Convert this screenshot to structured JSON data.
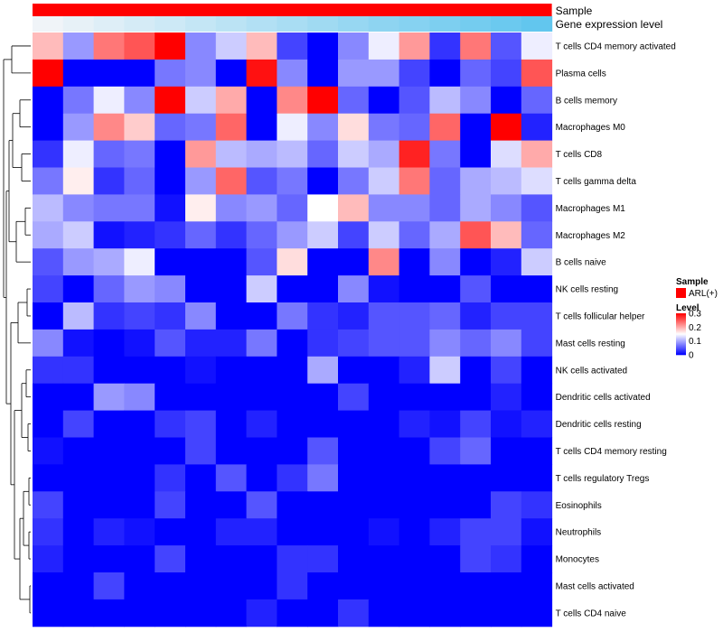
{
  "chart_data": {
    "type": "heatmap",
    "annotation_tracks": {
      "sample": {
        "label": "Sample",
        "color": "#ff0000"
      },
      "expression": {
        "label": "Gene expression level",
        "colors": [
          "#f0f4f8",
          "#62c6ee"
        ]
      }
    },
    "rows": [
      "T cells CD4 memory activated",
      "Plasma cells",
      "B cells memory",
      "Macrophages M0",
      "T cells CD8",
      "T cells gamma delta",
      "Macrophages M1",
      "Macrophages M2",
      "B cells naive",
      "NK cells resting",
      "T cells follicular helper",
      "Mast cells resting",
      "NK cells activated",
      "Dendritic cells activated",
      "Dendritic cells resting",
      "T cells CD4 memory resting",
      "T cells regulatory  Tregs",
      "Eosinophils",
      "Neutrophils",
      "Monocytes",
      "Mast cells activated",
      "T cells CD4 naive"
    ],
    "n_columns": 17,
    "values": [
      [
        0.19,
        0.09,
        0.23,
        0.25,
        0.3,
        0.08,
        0.12,
        0.19,
        0.04,
        0.0,
        0.08,
        0.14,
        0.21,
        0.03,
        0.23,
        0.05,
        0.14
      ],
      [
        0.3,
        0.0,
        0.0,
        0.0,
        0.07,
        0.08,
        0.0,
        0.29,
        0.08,
        0.0,
        0.09,
        0.09,
        0.04,
        0.0,
        0.06,
        0.04,
        0.25
      ],
      [
        0.0,
        0.07,
        0.14,
        0.08,
        0.3,
        0.12,
        0.2,
        0.0,
        0.22,
        0.3,
        0.06,
        0.0,
        0.05,
        0.11,
        0.08,
        0.0,
        0.06
      ],
      [
        0.0,
        0.09,
        0.22,
        0.18,
        0.06,
        0.07,
        0.24,
        0.0,
        0.14,
        0.08,
        0.17,
        0.07,
        0.06,
        0.24,
        0.0,
        0.3,
        0.02
      ],
      [
        0.03,
        0.14,
        0.06,
        0.07,
        0.0,
        0.21,
        0.11,
        0.1,
        0.11,
        0.06,
        0.12,
        0.1,
        0.28,
        0.07,
        0.0,
        0.13,
        0.2
      ],
      [
        0.07,
        0.16,
        0.03,
        0.06,
        0.0,
        0.09,
        0.24,
        0.05,
        0.07,
        0.0,
        0.07,
        0.12,
        0.23,
        0.06,
        0.1,
        0.11,
        0.13
      ],
      [
        0.11,
        0.08,
        0.07,
        0.07,
        0.01,
        0.16,
        0.08,
        0.09,
        0.06,
        0.15,
        0.19,
        0.08,
        0.08,
        0.06,
        0.1,
        0.08,
        0.05
      ],
      [
        0.1,
        0.12,
        0.01,
        0.02,
        0.03,
        0.06,
        0.03,
        0.06,
        0.09,
        0.12,
        0.04,
        0.12,
        0.06,
        0.1,
        0.25,
        0.19,
        0.06
      ],
      [
        0.05,
        0.09,
        0.1,
        0.14,
        0.0,
        0.0,
        0.0,
        0.05,
        0.17,
        0.0,
        0.0,
        0.22,
        0.0,
        0.08,
        0.0,
        0.02,
        0.12
      ],
      [
        0.04,
        0.0,
        0.06,
        0.09,
        0.08,
        0.0,
        0.0,
        0.12,
        0.0,
        0.0,
        0.08,
        0.01,
        0.0,
        0.0,
        0.05,
        0.0,
        0.0
      ],
      [
        0.0,
        0.11,
        0.03,
        0.04,
        0.03,
        0.08,
        0.0,
        0.0,
        0.07,
        0.03,
        0.02,
        0.05,
        0.05,
        0.06,
        0.02,
        0.04,
        0.04
      ],
      [
        0.08,
        0.01,
        0.0,
        0.01,
        0.05,
        0.02,
        0.02,
        0.07,
        0.0,
        0.03,
        0.04,
        0.05,
        0.05,
        0.08,
        0.06,
        0.08,
        0.04
      ],
      [
        0.03,
        0.03,
        0.0,
        0.0,
        0.0,
        0.01,
        0.0,
        0.0,
        0.0,
        0.1,
        0.0,
        0.0,
        0.02,
        0.12,
        0.0,
        0.04,
        0.0
      ],
      [
        0.0,
        0.0,
        0.09,
        0.08,
        0.0,
        0.0,
        0.0,
        0.0,
        0.0,
        0.0,
        0.04,
        0.0,
        0.0,
        0.0,
        0.0,
        0.02,
        0.0
      ],
      [
        0.0,
        0.04,
        0.0,
        0.0,
        0.03,
        0.04,
        0.0,
        0.02,
        0.0,
        0.0,
        0.0,
        0.0,
        0.02,
        0.01,
        0.04,
        0.01,
        0.02
      ],
      [
        0.01,
        0.0,
        0.0,
        0.0,
        0.0,
        0.04,
        0.0,
        0.0,
        0.0,
        0.05,
        0.0,
        0.0,
        0.0,
        0.04,
        0.06,
        0.0,
        0.0
      ],
      [
        0.0,
        0.0,
        0.0,
        0.0,
        0.03,
        0.0,
        0.05,
        0.0,
        0.03,
        0.07,
        0.0,
        0.0,
        0.0,
        0.0,
        0.0,
        0.0,
        0.0
      ],
      [
        0.04,
        0.0,
        0.0,
        0.0,
        0.04,
        0.0,
        0.0,
        0.05,
        0.0,
        0.0,
        0.0,
        0.0,
        0.0,
        0.0,
        0.0,
        0.04,
        0.03
      ],
      [
        0.03,
        0.0,
        0.02,
        0.01,
        0.0,
        0.0,
        0.02,
        0.02,
        0.0,
        0.0,
        0.0,
        0.01,
        0.0,
        0.02,
        0.04,
        0.04,
        0.01
      ],
      [
        0.02,
        0.0,
        0.0,
        0.0,
        0.04,
        0.0,
        0.0,
        0.0,
        0.03,
        0.03,
        0.0,
        0.0,
        0.0,
        0.0,
        0.04,
        0.03,
        0.0
      ],
      [
        0.0,
        0.0,
        0.04,
        0.0,
        0.0,
        0.0,
        0.0,
        0.0,
        0.03,
        0.0,
        0.0,
        0.0,
        0.0,
        0.0,
        0.0,
        0.0,
        0.0
      ],
      [
        0.0,
        0.0,
        0.0,
        0.0,
        0.0,
        0.0,
        0.0,
        0.02,
        0.0,
        0.0,
        0.03,
        0.0,
        0.0,
        0.0,
        0.0,
        0.0,
        0.0
      ]
    ],
    "color_scale": {
      "low": "#0000ff",
      "mid": "#ffffff",
      "high": "#ff0000",
      "domain": [
        0,
        0.15,
        0.3
      ]
    },
    "legend": {
      "sample_title": "Sample",
      "sample_entry": "ARL(+)",
      "level_title": "Level",
      "level_ticks": [
        {
          "value": 0.3,
          "label": "0.3"
        },
        {
          "value": 0.2,
          "label": "0.2"
        },
        {
          "value": 0.1,
          "label": "0.1"
        },
        {
          "value": 0,
          "label": "0"
        }
      ]
    },
    "row_dendrogram": true,
    "placement": {
      "legend": "right",
      "row_labels": "right",
      "annotations": "top"
    }
  }
}
